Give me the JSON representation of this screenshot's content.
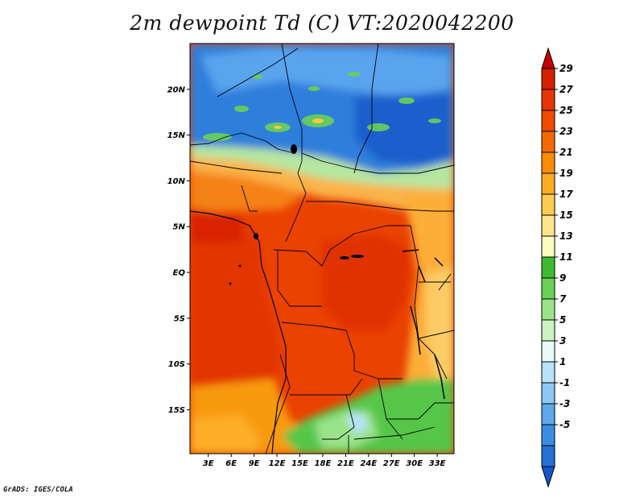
{
  "title": "2m dewpoint Td (C) VT:2020042200",
  "credit": "GrADS: IGES/COLA",
  "map": {
    "lat_labels": [
      "20N",
      "15N",
      "10N",
      "5N",
      "EQ",
      "5S",
      "10S",
      "15S"
    ],
    "lon_labels": [
      "3E",
      "6E",
      "9E",
      "12E",
      "15E",
      "18E",
      "21E",
      "24E",
      "27E",
      "30E",
      "33E"
    ],
    "lat_values": [
      20,
      15,
      10,
      5,
      0,
      -5,
      -10,
      -15
    ],
    "lon_values": [
      3,
      6,
      9,
      12,
      15,
      18,
      21,
      24,
      27,
      30,
      33
    ],
    "extent": {
      "lon": [
        0.6,
        35.2
      ],
      "lat": [
        -19.8,
        25
      ]
    }
  },
  "colorbar": {
    "labels": [
      "29",
      "27",
      "25",
      "23",
      "21",
      "19",
      "17",
      "15",
      "13",
      "11",
      "9",
      "7",
      "5",
      "3",
      "1",
      "-1",
      "-3",
      "-5"
    ],
    "colors": [
      "#c40000",
      "#d61e00",
      "#e83400",
      "#f04a00",
      "#f56a00",
      "#fb8c00",
      "#fdab20",
      "#fdcc50",
      "#fde68a",
      "#fdfbc0",
      "#3dbb30",
      "#69d056",
      "#9be38a",
      "#cbf2c2",
      "#e8fbf8",
      "#b8e2f8",
      "#8cc8f4",
      "#5ea8ec",
      "#3a8ee2",
      "#2670d6",
      "#1456c8"
    ]
  }
}
